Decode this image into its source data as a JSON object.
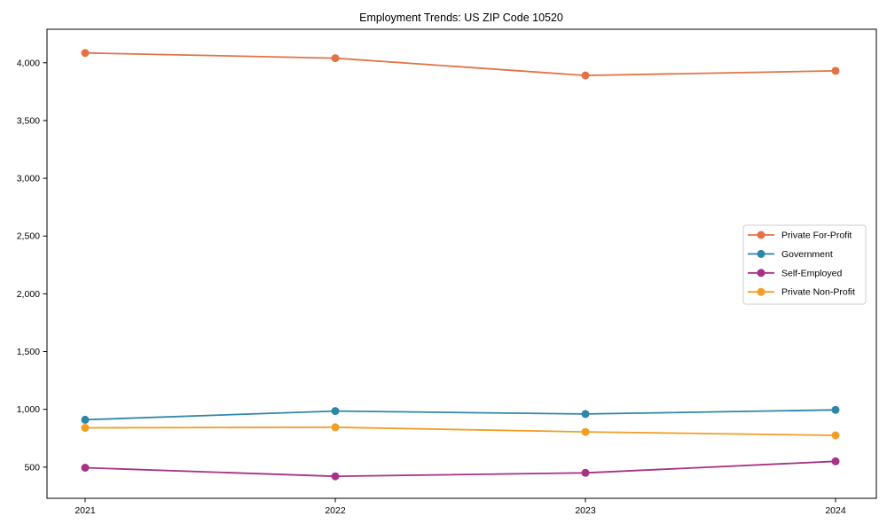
{
  "chart_data": {
    "type": "line",
    "title": "Employment Trends: US ZIP Code 10520",
    "xlabel": "",
    "ylabel": "",
    "categories": [
      "2021",
      "2022",
      "2023",
      "2024"
    ],
    "series": [
      {
        "name": "Private For-Profit",
        "color": "#E27346",
        "values": [
          4085,
          4040,
          3890,
          3930
        ]
      },
      {
        "name": "Government",
        "color": "#2E86A8",
        "values": [
          910,
          985,
          960,
          995
        ]
      },
      {
        "name": "Self-Employed",
        "color": "#A63284",
        "values": [
          495,
          420,
          450,
          550
        ]
      },
      {
        "name": "Private Non-Profit",
        "color": "#F29D26",
        "values": [
          840,
          845,
          805,
          775
        ]
      }
    ],
    "ylim": [
      230,
      4290
    ],
    "y_ticks": [
      500,
      1000,
      1500,
      2000,
      2500,
      3000,
      3500,
      4000
    ],
    "y_tick_labels": [
      "500",
      "1,000",
      "1,500",
      "2,000",
      "2,500",
      "3,000",
      "3,500",
      "4,000"
    ],
    "grid": false,
    "frame": "box",
    "legend_position": "center-right",
    "axis_color": "#000000",
    "text_color": "#000000",
    "legend_border_color": "#cccccc",
    "background_color": "#ffffff"
  }
}
